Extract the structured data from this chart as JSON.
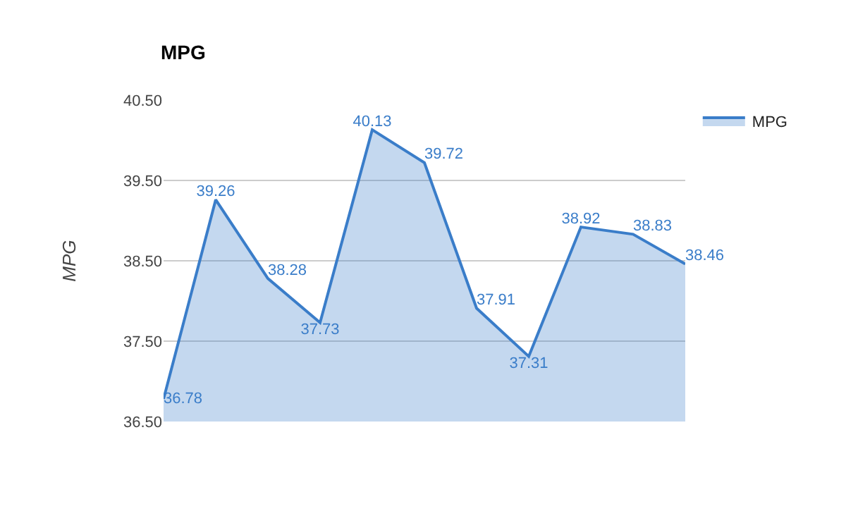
{
  "chart_data": {
    "type": "area",
    "title": "MPG",
    "ylabel": "MPG",
    "categories": [
      null,
      null,
      null,
      null,
      null,
      null,
      null,
      null,
      null,
      null,
      null
    ],
    "series": [
      {
        "name": "MPG",
        "color": "#3a7dc9",
        "values": [
          36.78,
          39.26,
          38.28,
          37.73,
          40.13,
          39.72,
          37.91,
          37.31,
          38.92,
          38.83,
          38.46
        ]
      }
    ],
    "ylim": [
      36.5,
      40.5
    ],
    "yticks": [
      {
        "value": 36.5,
        "label": "36.50"
      },
      {
        "value": 37.5,
        "label": "37.50"
      },
      {
        "value": 38.5,
        "label": "38.50"
      },
      {
        "value": 39.5,
        "label": "39.50"
      },
      {
        "value": 40.5,
        "label": "40.50"
      }
    ],
    "grid": "y",
    "legend": "top right",
    "marker": "none",
    "data_labels": true
  }
}
